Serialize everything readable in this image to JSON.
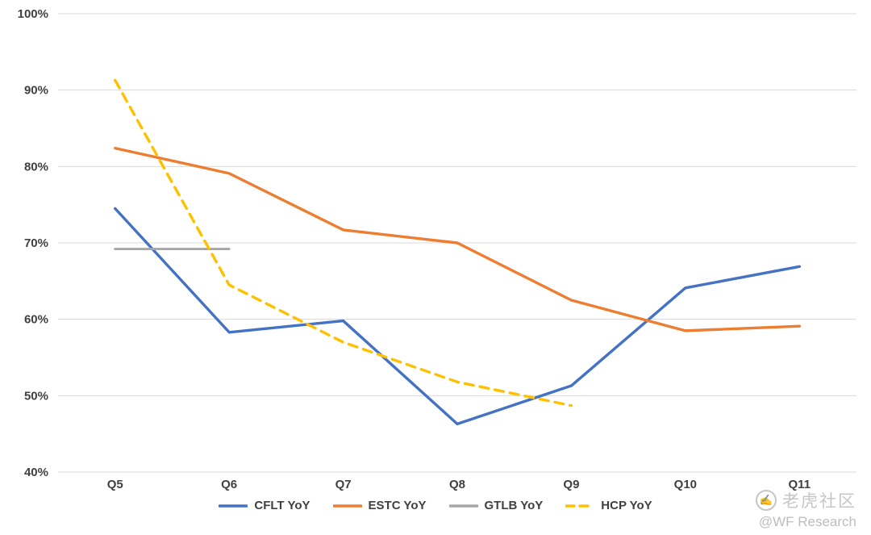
{
  "chart_data": {
    "type": "line",
    "title": "",
    "xlabel": "",
    "ylabel": "",
    "categories": [
      "Q5",
      "Q6",
      "Q7",
      "Q8",
      "Q9",
      "Q10",
      "Q11"
    ],
    "yticks": [
      "100%",
      "90%",
      "80%",
      "70%",
      "60%",
      "50%",
      "40%"
    ],
    "ylim": [
      40,
      100
    ],
    "ytick_step": 10,
    "grid": true,
    "legend_position": "bottom",
    "series": [
      {
        "name": "CFLT YoY",
        "color": "#4472C4",
        "dashed": false,
        "values": [
          74.5,
          58.3,
          59.8,
          46.3,
          51.3,
          64.1,
          66.9
        ]
      },
      {
        "name": "ESTC YoY",
        "color": "#ED7D31",
        "dashed": false,
        "values": [
          82.4,
          79.1,
          71.7,
          70.0,
          62.5,
          58.5,
          59.1
        ]
      },
      {
        "name": "GTLB YoY",
        "color": "#A6A6A6",
        "dashed": false,
        "values": [
          69.2,
          69.2,
          null,
          null,
          null,
          null,
          null
        ]
      },
      {
        "name": "HCP YoY",
        "color": "#FFC000",
        "dashed": true,
        "values": [
          91.3,
          64.5,
          57.0,
          51.8,
          48.7,
          null,
          null
        ]
      }
    ]
  },
  "watermark": {
    "hand_icon": "✍",
    "community": "老虎社区",
    "account": "@WF Research"
  }
}
